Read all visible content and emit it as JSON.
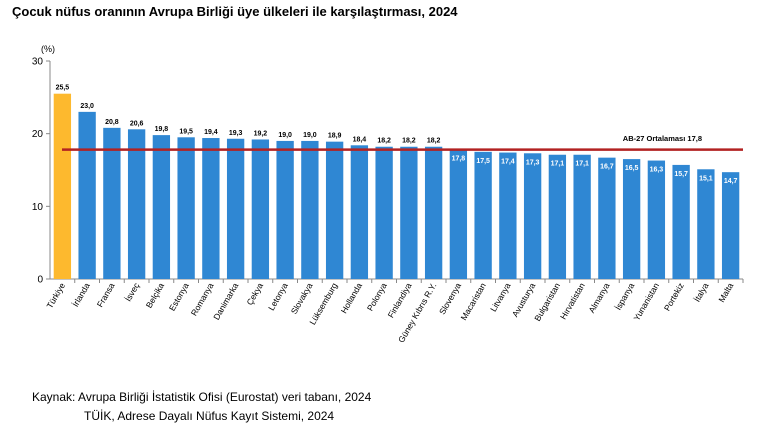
{
  "title": "Çocuk nüfus oranının Avrupa Birliği üye ülkeleri ile karşılaştırması, 2024",
  "source": {
    "line1": "Kaynak: Avrupa Birliği İstatistik Ofisi (Eurostat) veri tabanı, 2024",
    "line2": "TÜİK, Adrese Dayalı Nüfus Kayıt Sistemi, 2024"
  },
  "colors": {
    "highlight": "#FDB92E",
    "bar": "#2F87D3",
    "average_line": "#B22222"
  },
  "chart_data": {
    "type": "bar",
    "ylabel": "(%)",
    "ylim": [
      0,
      30
    ],
    "yticks": [
      0,
      10,
      20,
      30
    ],
    "grid": false,
    "categories": [
      "Türkiye",
      "İrlanda",
      "Fransa",
      "İsveç",
      "Belçika",
      "Estonya",
      "Romanya",
      "Danimarka",
      "Çekya",
      "Letonya",
      "Slovakya",
      "Lüksemburg",
      "Hollanda",
      "Polonya",
      "Finlandiya",
      "Güney Kıbrıs R.Y.",
      "Slovenya",
      "Macaristan",
      "Litvanya",
      "Avusturya",
      "Bulgaristan",
      "Hırvatistan",
      "Almanya",
      "İspanya",
      "Yunanistan",
      "Portekiz",
      "İtalya",
      "Malta"
    ],
    "values": [
      25.5,
      23.0,
      20.8,
      20.6,
      19.8,
      19.5,
      19.4,
      19.3,
      19.2,
      19.0,
      19.0,
      18.9,
      18.4,
      18.2,
      18.2,
      18.2,
      17.8,
      17.5,
      17.4,
      17.3,
      17.1,
      17.1,
      16.7,
      16.5,
      16.3,
      15.7,
      15.1,
      14.7
    ],
    "value_labels": [
      "25,5",
      "23,0",
      "20,8",
      "20,6",
      "19,8",
      "19,5",
      "19,4",
      "19,3",
      "19,2",
      "19,0",
      "19,0",
      "18,9",
      "18,4",
      "18,2",
      "18,2",
      "18,2",
      "17,8",
      "17,5",
      "17,4",
      "17,3",
      "17,1",
      "17,1",
      "16,7",
      "16,5",
      "16,3",
      "15,7",
      "15,1",
      "14,7"
    ],
    "highlight_index": 0,
    "average": {
      "label": "AB-27 Ortalaması 17,8",
      "value": 17.8
    }
  }
}
